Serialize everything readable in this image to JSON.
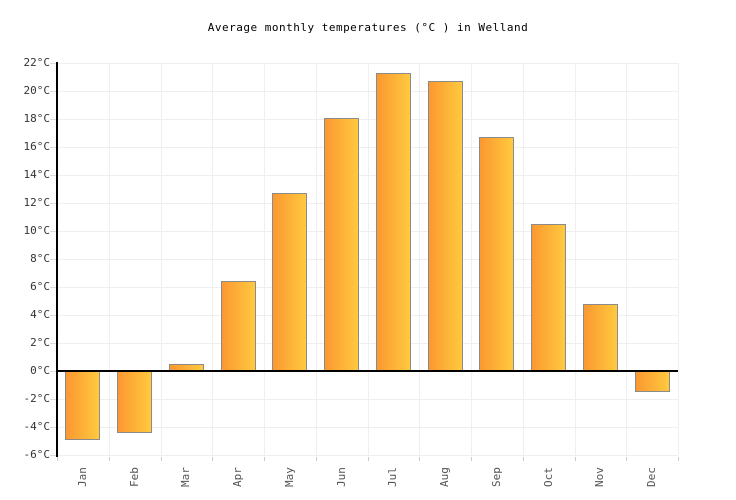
{
  "title": "Average monthly temperatures (°C ) in Welland",
  "chart_data": {
    "type": "bar",
    "title": "Average monthly temperatures (°C ) in Welland",
    "categories": [
      "Jan",
      "Feb",
      "Mar",
      "Apr",
      "May",
      "Jun",
      "Jul",
      "Aug",
      "Sep",
      "Oct",
      "Nov",
      "Dec"
    ],
    "values": [
      -4.9,
      -4.4,
      0.5,
      6.4,
      12.7,
      18.1,
      21.3,
      20.7,
      16.7,
      10.5,
      4.8,
      -1.5
    ],
    "unit": "°C",
    "xlabel": "",
    "ylabel": "",
    "ylim": [
      -6,
      22
    ],
    "ytick_step": 2,
    "ytick_labels": [
      "-6°C",
      "-4°C",
      "-2°C",
      "0°C",
      "2°C",
      "4°C",
      "6°C",
      "8°C",
      "10°C",
      "12°C",
      "14°C",
      "16°C",
      "18°C",
      "20°C",
      "22°C"
    ],
    "grid": true,
    "legend": "none",
    "colors": {
      "bar_gradient_left": "#FB9831",
      "bar_gradient_right": "#FFC93F",
      "bar_border": "#8B8B8B",
      "zero_line": "#000000",
      "axis": "#000000",
      "gridline": "#EFEFEF",
      "title_text": "#000000",
      "ytick_text": "#333333",
      "xtick_text": "#555555",
      "background": "#FFFFFF"
    }
  }
}
